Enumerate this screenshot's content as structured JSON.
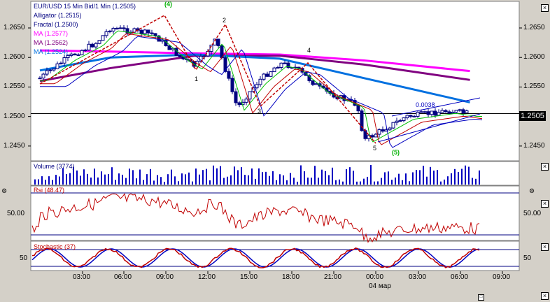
{
  "price_panel": {
    "legend": [
      {
        "text": "EUR/USD 15 Min Bid/1 Min (1.2505)",
        "color": "#000080"
      },
      {
        "text": "Alligator (1.2515)",
        "color": "#000080"
      },
      {
        "text": "Fractal (1.2500)",
        "color": "#000080"
      },
      {
        "text": "MA (1.2577)",
        "color": "#ff00ff"
      },
      {
        "text": "MA (1.2562)",
        "color": "#800080"
      },
      {
        "text": "MA (1.2524)",
        "color": "#0070e0"
      }
    ],
    "y_ticks": [
      "1.2650",
      "1.2600",
      "1.2550",
      "1.2500",
      "1.2450"
    ],
    "current_price": "1.2505",
    "wave_labels": [
      "(4)",
      "2",
      "1",
      "4",
      "3",
      "5",
      "(5)"
    ],
    "channel_label": "0.0038"
  },
  "volume_panel": {
    "legend": "Volume (3774)"
  },
  "rsi_panel": {
    "legend": "Rsi (48.47)",
    "y_tick": "50.00"
  },
  "stoch_panel": {
    "legend": "Stochastic (37)",
    "y_tick": "50"
  },
  "x_axis": {
    "ticks": [
      "03:00",
      "06:00",
      "09:00",
      "12:00",
      "15:00",
      "18:00",
      "21:00",
      "00:00",
      "03:00",
      "06:00",
      "09:00"
    ],
    "date_label": "04 мар"
  },
  "chart_data": {
    "type": "line",
    "title": "EUR/USD 15 Min Bid/1 Min (1.2505)",
    "ylim": [
      1.2425,
      1.2695
    ],
    "series": [
      {
        "name": "EUR/USD",
        "color": "#000080",
        "x": [
          "01:00",
          "03:00",
          "05:00",
          "06:00",
          "09:00",
          "11:00",
          "12:00",
          "13:30",
          "15:00",
          "16:30",
          "18:00",
          "19:00",
          "21:00",
          "23:30",
          "00:00",
          "03:00",
          "06:00",
          "07:30"
        ],
        "values": [
          1.2565,
          1.26,
          1.2625,
          1.265,
          1.264,
          1.26,
          1.2585,
          1.263,
          1.2515,
          1.256,
          1.259,
          1.2585,
          1.2545,
          1.252,
          1.246,
          1.25,
          1.251,
          1.2505
        ]
      },
      {
        "name": "MA (1.2577)",
        "color": "#ff00ff",
        "x": [
          "01:00",
          "06:00",
          "12:00",
          "18:00",
          "00:00",
          "07:30"
        ],
        "values": [
          1.2612,
          1.261,
          1.2607,
          1.2605,
          1.2595,
          1.2577
        ]
      },
      {
        "name": "MA (1.2562)",
        "color": "#800080",
        "x": [
          "01:00",
          "06:00",
          "12:00",
          "18:00",
          "00:00",
          "07:30"
        ],
        "values": [
          1.256,
          1.2582,
          1.2603,
          1.2603,
          1.2588,
          1.2562
        ]
      },
      {
        "name": "MA (1.2524)",
        "color": "#0070e0",
        "x": [
          "01:00",
          "06:00",
          "12:00",
          "18:00",
          "00:00",
          "07:30"
        ],
        "values": [
          1.2578,
          1.26,
          1.2605,
          1.2598,
          1.2565,
          1.2524
        ]
      }
    ],
    "indicators": {
      "volume_last": 3774,
      "rsi_last": 48.47,
      "stochastic_period": 37
    }
  }
}
